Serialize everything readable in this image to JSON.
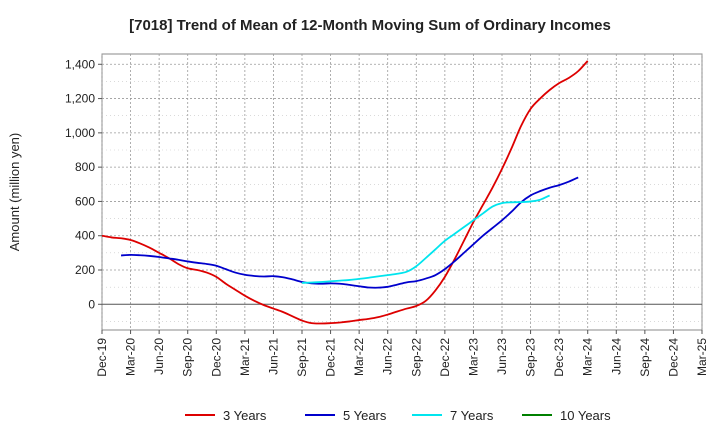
{
  "chart_data": {
    "type": "line",
    "title": "[7018]  Trend of Mean of 12-Month Moving Sum of Ordinary Incomes",
    "xlabel": "",
    "ylabel": "Amount (million yen)",
    "ylim": [
      -150,
      1460
    ],
    "yticks": [
      0,
      200,
      400,
      600,
      800,
      1000,
      1200,
      1400
    ],
    "ytick_labels": [
      "0",
      "200",
      "400",
      "600",
      "800",
      "1,000",
      "1,200",
      "1,400"
    ],
    "x_tick_labels": [
      "Dec-19",
      "Mar-20",
      "Jun-20",
      "Sep-20",
      "Dec-20",
      "Mar-21",
      "Jun-21",
      "Sep-21",
      "Dec-21",
      "Mar-22",
      "Jun-22",
      "Sep-22",
      "Dec-22",
      "Mar-23",
      "Jun-23",
      "Sep-23",
      "Dec-23",
      "Mar-24",
      "Jun-24",
      "Sep-24",
      "Dec-24",
      "Mar-25"
    ],
    "x_start_month": "Dec-19",
    "grid": true,
    "legend_position": "bottom",
    "series": [
      {
        "name": "3 Years",
        "color": "#dd0000",
        "start_index": 0,
        "values": [
          400,
          390,
          385,
          375,
          355,
          330,
          300,
          270,
          235,
          210,
          200,
          185,
          160,
          120,
          85,
          50,
          20,
          -5,
          -25,
          -45,
          -70,
          -95,
          -110,
          -112,
          -110,
          -106,
          -100,
          -92,
          -85,
          -75,
          -60,
          -42,
          -25,
          -10,
          20,
          80,
          160,
          260,
          370,
          480,
          580,
          680,
          790,
          910,
          1040,
          1140,
          1200,
          1250,
          1290,
          1320,
          1360,
          1420
        ]
      },
      {
        "name": "5 Years",
        "color": "#0000cc",
        "start_index": 2,
        "values": [
          285,
          288,
          286,
          282,
          276,
          268,
          260,
          250,
          242,
          235,
          225,
          205,
          185,
          172,
          165,
          162,
          164,
          158,
          145,
          130,
          122,
          120,
          122,
          120,
          113,
          105,
          98,
          97,
          102,
          115,
          128,
          135,
          150,
          170,
          205,
          250,
          300,
          350,
          400,
          445,
          490,
          540,
          595,
          635,
          660,
          680,
          695,
          715,
          740
        ]
      },
      {
        "name": "7 Years",
        "color": "#00e5ee",
        "start_index": 21,
        "values": [
          125,
          127,
          130,
          134,
          138,
          142,
          148,
          155,
          163,
          170,
          178,
          190,
          222,
          270,
          320,
          370,
          410,
          450,
          490,
          530,
          570,
          590,
          595,
          596,
          600,
          610,
          635
        ]
      },
      {
        "name": "10 Years",
        "color": "#008000",
        "start_index": 0,
        "values": []
      }
    ]
  }
}
